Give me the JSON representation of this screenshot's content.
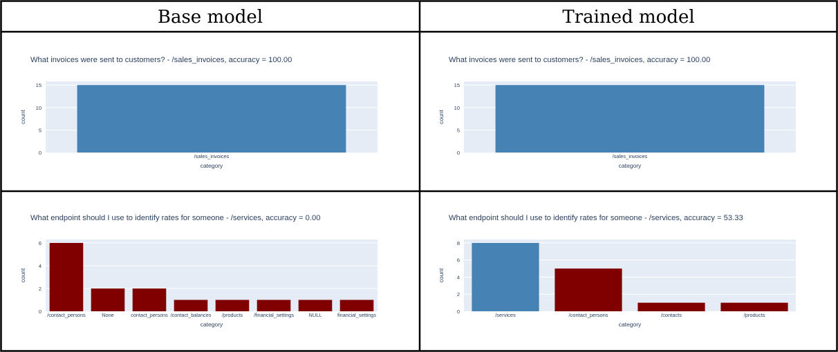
{
  "header": {
    "col_left": "Base model",
    "col_right": "Trained model"
  },
  "colors": {
    "correct": "#4682b4",
    "incorrect": "#800000",
    "plot_bg": "#e5ecf6",
    "text": "#2a3f5f"
  },
  "chart_data": [
    {
      "id": "base-q1",
      "type": "bar",
      "title": "What invoices were sent to customers? - /sales_invoices, accuracy = 100.00",
      "xlabel": "category",
      "ylabel": "count",
      "categories": [
        "/sales_invoices"
      ],
      "values": [
        15
      ],
      "colors": [
        "#4682b4"
      ],
      "ylim": [
        0,
        15.8
      ],
      "yticks": [
        0,
        5,
        10,
        15
      ],
      "grid": true
    },
    {
      "id": "trained-q1",
      "type": "bar",
      "title": "What invoices were sent to customers? - /sales_invoices, accuracy = 100.00",
      "xlabel": "category",
      "ylabel": "count",
      "categories": [
        "/sales_invoices"
      ],
      "values": [
        15
      ],
      "colors": [
        "#4682b4"
      ],
      "ylim": [
        0,
        15.8
      ],
      "yticks": [
        0,
        5,
        10,
        15
      ],
      "grid": true
    },
    {
      "id": "base-q2",
      "type": "bar",
      "title": "What endpoint should I use to identify rates for someone - /services, accuracy = 0.00",
      "xlabel": "category",
      "ylabel": "count",
      "categories": [
        "/contact_persons",
        "None",
        "contact_persons",
        "/contact_balances",
        "/products",
        "/financial_settings",
        "NULL",
        "financial_settings"
      ],
      "values": [
        6,
        2,
        2,
        1,
        1,
        1,
        1,
        1
      ],
      "colors": [
        "#800000",
        "#800000",
        "#800000",
        "#800000",
        "#800000",
        "#800000",
        "#800000",
        "#800000"
      ],
      "ylim": [
        0,
        6.3
      ],
      "yticks": [
        0,
        2,
        4,
        6
      ],
      "grid": true
    },
    {
      "id": "trained-q2",
      "type": "bar",
      "title": "What endpoint should I use to identify rates for someone - /services, accuracy = 53.33",
      "xlabel": "category",
      "ylabel": "count",
      "categories": [
        "/services",
        "/contact_persons",
        "/contacts",
        "/products"
      ],
      "values": [
        8,
        5,
        1,
        1
      ],
      "colors": [
        "#4682b4",
        "#800000",
        "#800000",
        "#800000"
      ],
      "ylim": [
        0,
        8.4
      ],
      "yticks": [
        0,
        2,
        4,
        6,
        8
      ],
      "grid": true
    }
  ]
}
